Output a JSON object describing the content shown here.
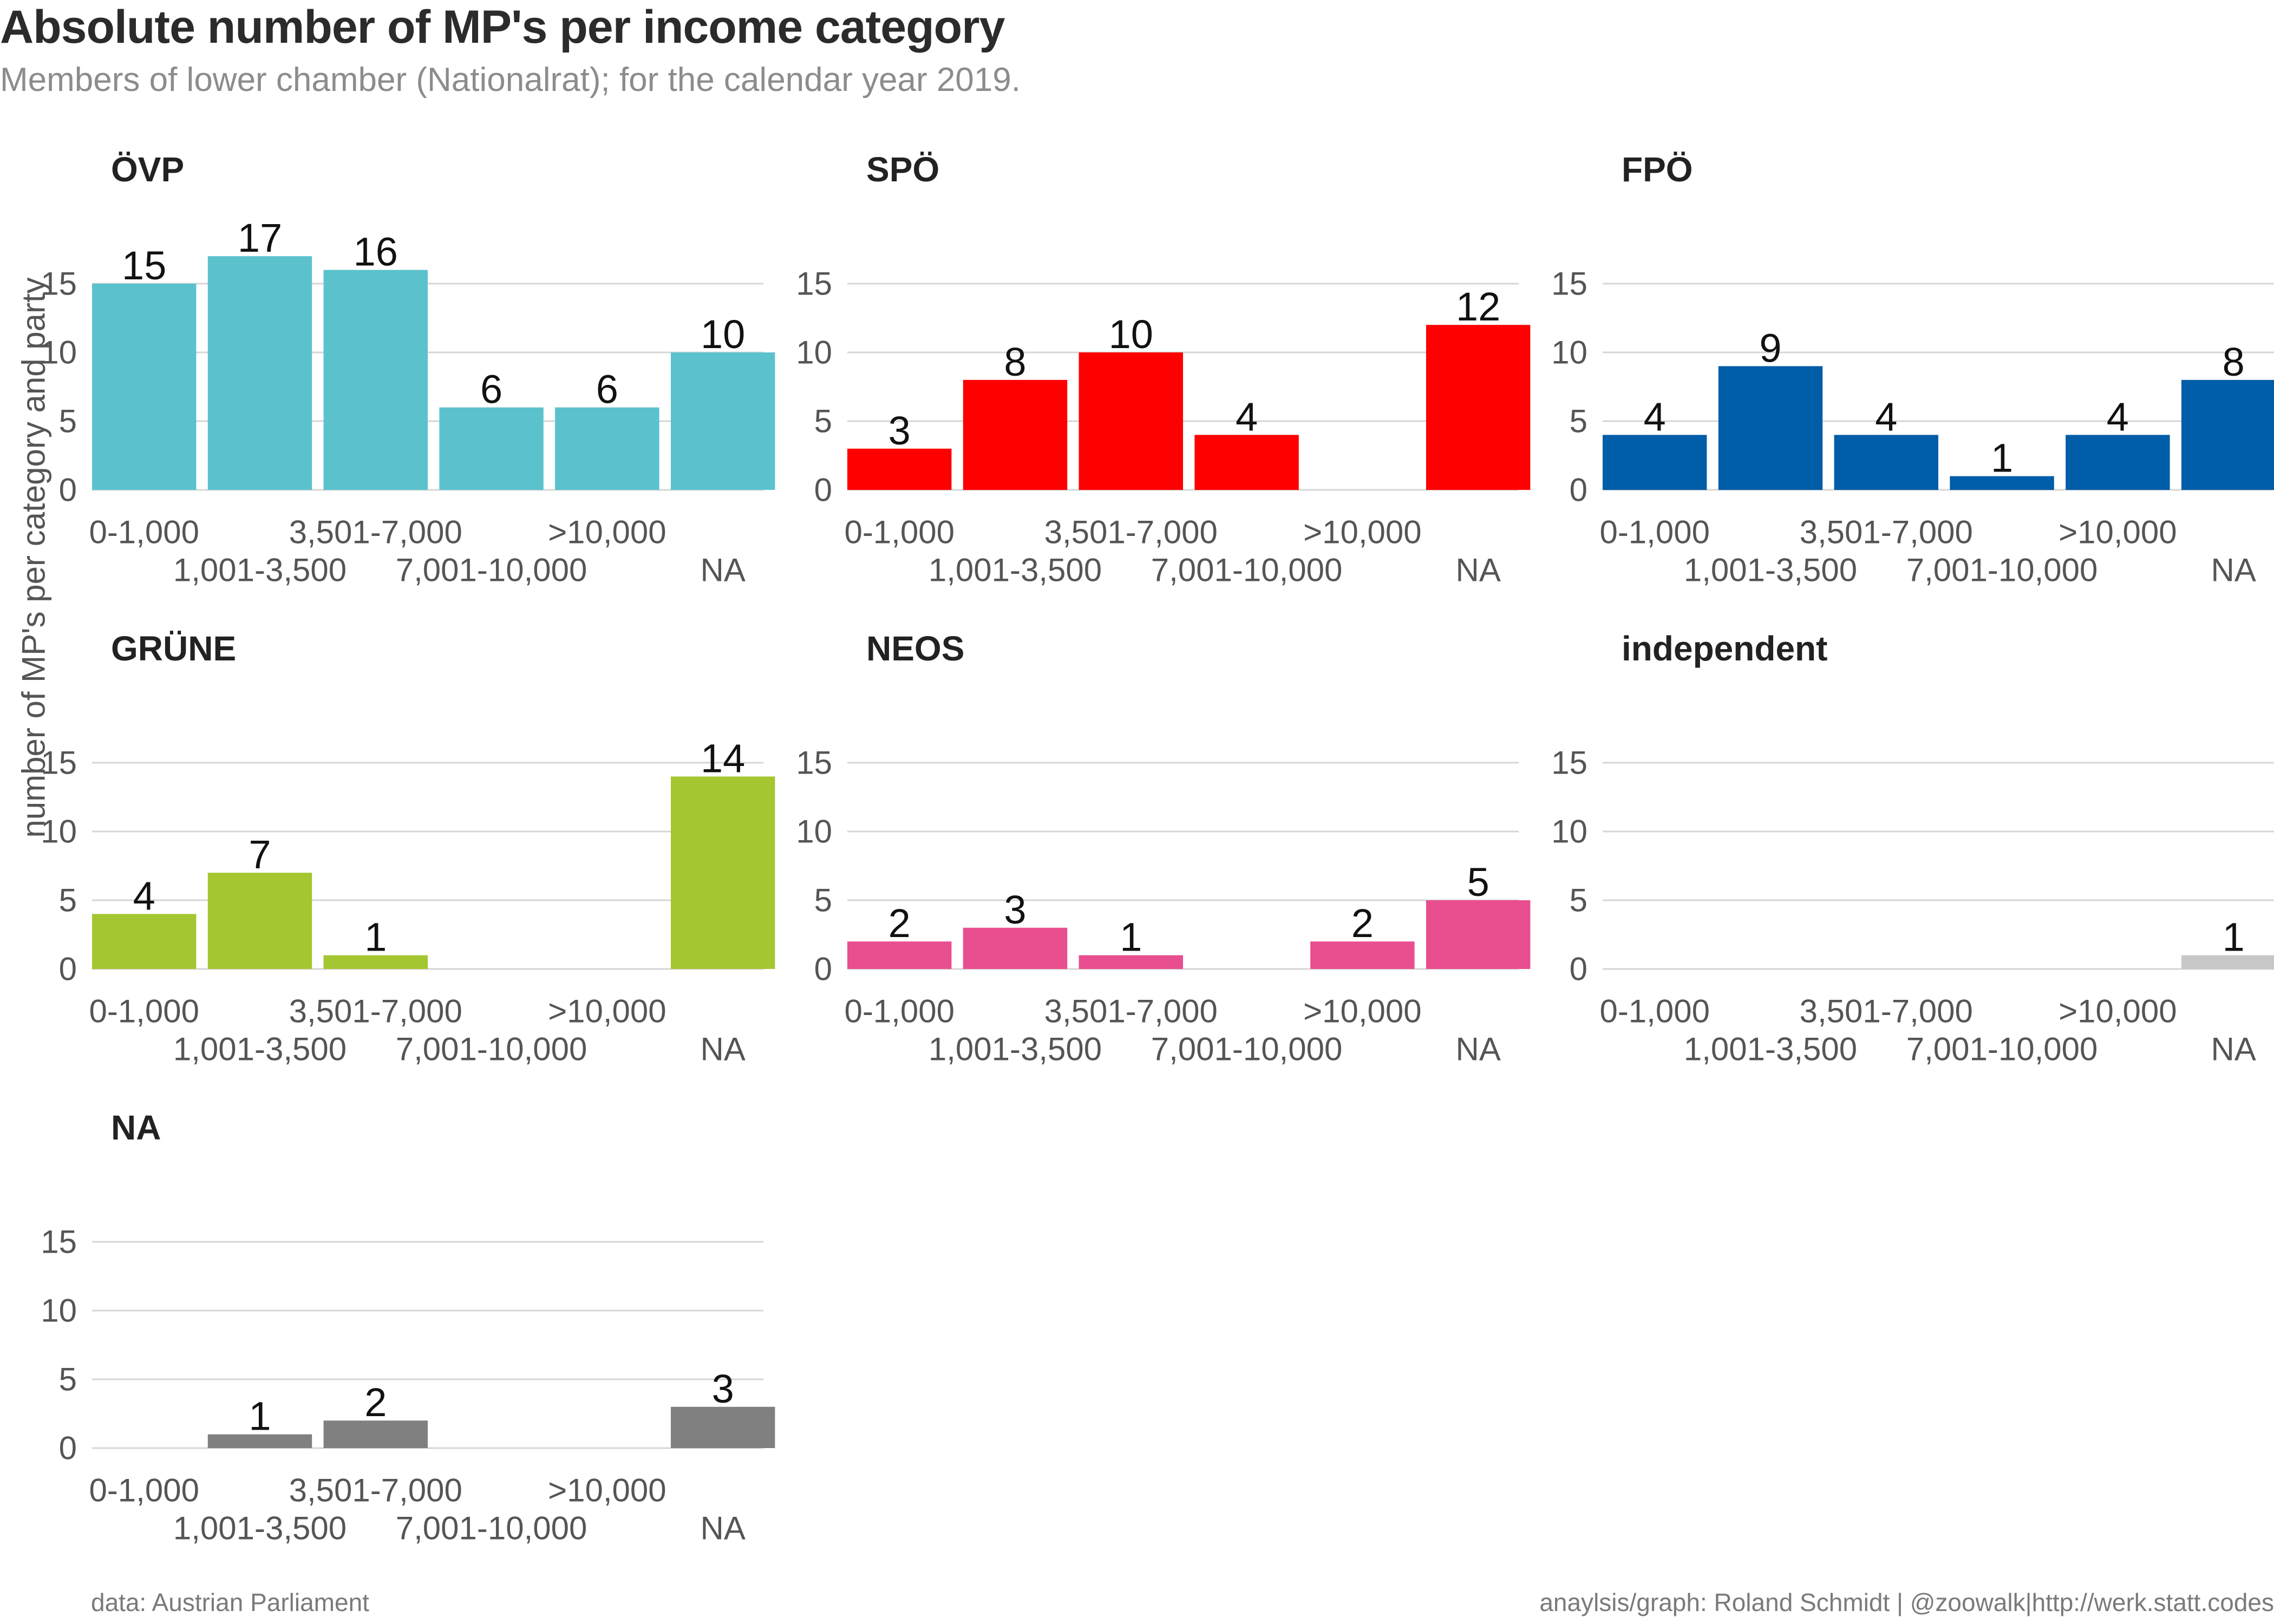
{
  "title": "Absolute number of MP's per income category",
  "subtitle": "Members of lower chamber (Nationalrat); for the calendar year 2019.",
  "caption_left": "data: Austrian Parliament",
  "caption_right": "anaylsis/graph: Roland Schmidt | @zoowalk|http://werk.statt.codes",
  "chart_data": {
    "type": "bar",
    "facet": "party",
    "ylabel": "number of MP's per category and party",
    "ylim": [
      0,
      17
    ],
    "yticks": [
      0,
      5,
      10,
      15
    ],
    "grid": "horizontal",
    "categories": [
      "0-1,000",
      "1,001-3,500",
      "3,501-7,000",
      "7,001-10,000",
      ">10,000",
      "NA"
    ],
    "panels": [
      {
        "name": "ÖVP",
        "color": "#5BC2CD",
        "values": [
          15,
          17,
          16,
          6,
          6,
          10
        ]
      },
      {
        "name": "SPÖ",
        "color": "#FF0000",
        "values": [
          3,
          8,
          10,
          4,
          null,
          12
        ]
      },
      {
        "name": "FPÖ",
        "color": "#005DA8",
        "values": [
          4,
          9,
          4,
          1,
          4,
          8
        ]
      },
      {
        "name": "GRÜNE",
        "color": "#A4C631",
        "values": [
          4,
          7,
          1,
          null,
          null,
          14
        ]
      },
      {
        "name": "NEOS",
        "color": "#E94E8F",
        "values": [
          2,
          3,
          1,
          null,
          2,
          5
        ]
      },
      {
        "name": "independent",
        "color": "#C8C8C8",
        "values": [
          null,
          null,
          null,
          null,
          null,
          1
        ]
      },
      {
        "name": "NA",
        "color": "#808080",
        "values": [
          null,
          1,
          2,
          null,
          null,
          3
        ]
      }
    ]
  }
}
